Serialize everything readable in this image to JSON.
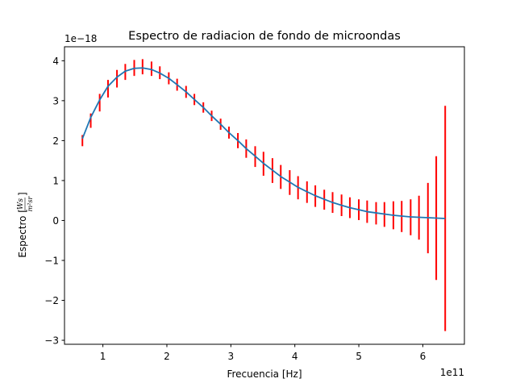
{
  "chart_data": {
    "type": "line",
    "title": "Espectro de radiacion de fondo de microondas",
    "xlabel": "Frecuencia [Hz]",
    "ylabel_prefix": "Espectro [",
    "ylabel_numerator": "Ws",
    "ylabel_denominator": "m²sr",
    "ylabel_suffix": "]",
    "x_offset_label": "1e11",
    "y_offset_label": "1e−18",
    "xlim": [
      0.4,
      6.65
    ],
    "ylim": [
      -3.1,
      4.35
    ],
    "x_ticks": [
      1,
      2,
      3,
      4,
      5,
      6
    ],
    "x_tick_labels": [
      "1",
      "2",
      "3",
      "4",
      "5",
      "6"
    ],
    "y_ticks": [
      -3,
      -2,
      -1,
      0,
      1,
      2,
      3,
      4
    ],
    "y_tick_labels": [
      "−3",
      "−2",
      "−1",
      "0",
      "1",
      "2",
      "3",
      "4"
    ],
    "grid": false,
    "colors": {
      "fit_line": "#1f77b4",
      "error_bars": "#ff0000"
    },
    "series": [
      {
        "kind": "errorbar",
        "x": [
          0.68,
          0.81,
          0.95,
          1.08,
          1.22,
          1.35,
          1.49,
          1.62,
          1.76,
          1.89,
          2.03,
          2.16,
          2.3,
          2.43,
          2.57,
          2.7,
          2.84,
          2.97,
          3.11,
          3.24,
          3.38,
          3.51,
          3.65,
          3.78,
          3.92,
          4.05,
          4.19,
          4.32,
          4.46,
          4.59,
          4.73,
          4.86,
          5.0,
          5.13,
          5.27,
          5.4,
          5.54,
          5.67,
          5.81,
          5.94,
          6.08,
          6.21,
          6.35
        ],
        "y": [
          2.0,
          2.5,
          2.95,
          3.3,
          3.55,
          3.72,
          3.82,
          3.85,
          3.8,
          3.7,
          3.56,
          3.4,
          3.22,
          3.03,
          2.83,
          2.62,
          2.41,
          2.2,
          2.0,
          1.8,
          1.6,
          1.42,
          1.25,
          1.09,
          0.95,
          0.82,
          0.71,
          0.61,
          0.52,
          0.45,
          0.38,
          0.32,
          0.27,
          0.22,
          0.18,
          0.15,
          0.13,
          0.1,
          0.08,
          0.07,
          0.06,
          0.06,
          0.05
        ],
        "yerr": [
          0.14,
          0.18,
          0.22,
          0.22,
          0.22,
          0.2,
          0.2,
          0.19,
          0.18,
          0.16,
          0.15,
          0.15,
          0.15,
          0.14,
          0.13,
          0.13,
          0.14,
          0.15,
          0.19,
          0.23,
          0.26,
          0.3,
          0.31,
          0.3,
          0.31,
          0.29,
          0.27,
          0.27,
          0.25,
          0.26,
          0.27,
          0.26,
          0.26,
          0.28,
          0.28,
          0.31,
          0.35,
          0.39,
          0.45,
          0.55,
          0.88,
          1.55,
          2.82
        ]
      },
      {
        "kind": "line",
        "x": [
          0.68,
          0.81,
          0.95,
          1.08,
          1.22,
          1.35,
          1.49,
          1.62,
          1.76,
          1.89,
          2.03,
          2.16,
          2.3,
          2.43,
          2.57,
          2.7,
          2.84,
          2.97,
          3.11,
          3.24,
          3.38,
          3.51,
          3.65,
          3.78,
          3.92,
          4.05,
          4.19,
          4.32,
          4.46,
          4.59,
          4.73,
          4.86,
          5.0,
          5.13,
          5.27,
          5.4,
          5.54,
          5.67,
          5.81,
          5.94,
          6.08,
          6.21,
          6.35
        ],
        "y": [
          2.05,
          2.58,
          3.02,
          3.36,
          3.59,
          3.74,
          3.81,
          3.82,
          3.78,
          3.69,
          3.56,
          3.4,
          3.22,
          3.03,
          2.83,
          2.62,
          2.41,
          2.2,
          2.0,
          1.8,
          1.61,
          1.43,
          1.26,
          1.1,
          0.96,
          0.83,
          0.72,
          0.62,
          0.53,
          0.45,
          0.38,
          0.32,
          0.27,
          0.22,
          0.19,
          0.16,
          0.13,
          0.11,
          0.09,
          0.08,
          0.07,
          0.06,
          0.05
        ]
      }
    ]
  }
}
